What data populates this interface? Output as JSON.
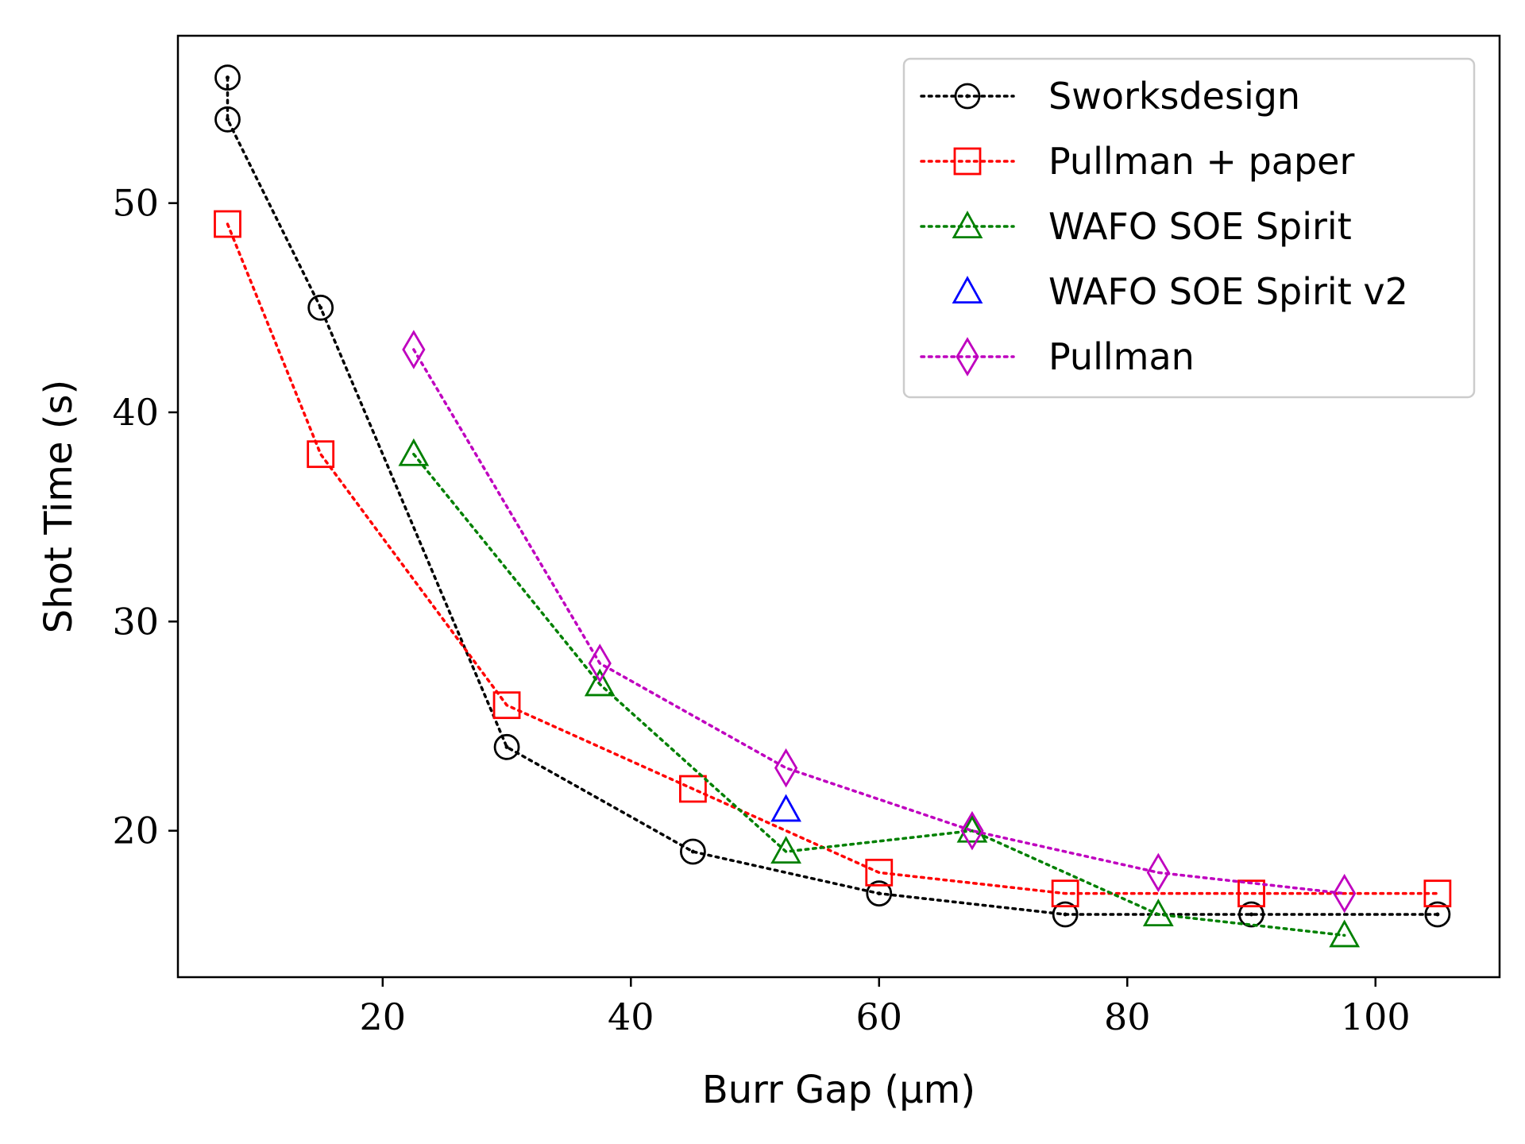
{
  "chart_data": {
    "type": "line",
    "title": "",
    "xlabel": "Burr Gap (μm)",
    "ylabel": "Shot Time (s)",
    "xlim": [
      3.5,
      110
    ],
    "ylim": [
      13,
      58
    ],
    "xticks": [
      20,
      40,
      60,
      80,
      100
    ],
    "yticks": [
      20,
      30,
      40,
      50
    ],
    "xtick_labels": [
      "20",
      "40",
      "60",
      "80",
      "100"
    ],
    "ytick_labels": [
      "20",
      "30",
      "40",
      "50"
    ],
    "grid": false,
    "legend_position": "top-right",
    "series": [
      {
        "name": "Sworksdesign",
        "color": "#000000",
        "marker": "circle",
        "linestyle": "dotted",
        "x": [
          7.5,
          7.5,
          15,
          30,
          45,
          60,
          75,
          90,
          105
        ],
        "y": [
          56,
          54,
          45,
          24,
          19,
          17,
          16,
          16,
          16
        ]
      },
      {
        "name": "Pullman + paper",
        "color": "#ff0000",
        "marker": "square",
        "linestyle": "dotted",
        "x": [
          7.5,
          15,
          30,
          45,
          60,
          75,
          90,
          105
        ],
        "y": [
          49,
          38,
          26,
          22,
          18,
          17,
          17,
          17
        ]
      },
      {
        "name": "WAFO SOE Spirit",
        "color": "#008000",
        "marker": "triangle",
        "linestyle": "dotted",
        "x": [
          22.5,
          37.5,
          52.5,
          67.5,
          82.5,
          97.5
        ],
        "y": [
          38,
          27,
          19,
          20,
          16,
          15
        ]
      },
      {
        "name": "WAFO SOE Spirit v2",
        "color": "#0000ff",
        "marker": "triangle",
        "linestyle": "none",
        "x": [
          52.5
        ],
        "y": [
          21
        ]
      },
      {
        "name": "Pullman",
        "color": "#bf00bf",
        "marker": "diamond",
        "linestyle": "dotted",
        "x": [
          22.5,
          37.5,
          52.5,
          67.5,
          82.5,
          97.5
        ],
        "y": [
          43,
          28,
          23,
          20,
          18,
          17
        ]
      }
    ]
  }
}
